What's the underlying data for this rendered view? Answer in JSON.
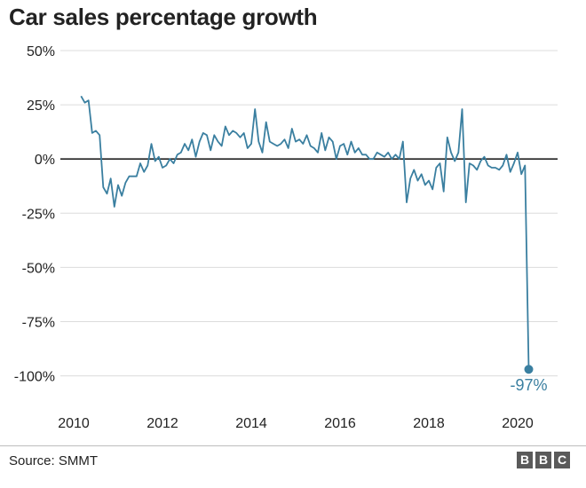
{
  "chart_data": {
    "type": "line",
    "title": "Car sales percentage growth",
    "source": "Source: SMMT",
    "xlabel": "",
    "ylabel": "",
    "xlim": [
      2009.7,
      2020.9
    ],
    "ylim": [
      -110,
      50
    ],
    "y_ticks": [
      {
        "value": 50,
        "label": "50%"
      },
      {
        "value": 25,
        "label": "25%"
      },
      {
        "value": 0,
        "label": "0%"
      },
      {
        "value": -25,
        "label": "-25%"
      },
      {
        "value": -50,
        "label": "-50%"
      },
      {
        "value": -75,
        "label": "-75%"
      },
      {
        "value": -100,
        "label": "-100%"
      }
    ],
    "x_ticks": [
      {
        "value": 2010,
        "label": "2010"
      },
      {
        "value": 2012,
        "label": "2012"
      },
      {
        "value": 2014,
        "label": "2014"
      },
      {
        "value": 2016,
        "label": "2016"
      },
      {
        "value": 2018,
        "label": "2018"
      },
      {
        "value": 2020,
        "label": "2020"
      }
    ],
    "grid": true,
    "line_color": "#3a7fa0",
    "zero_line_color": "#222222",
    "annotation": {
      "x": 2020.25,
      "y": -97,
      "label": "-97%"
    },
    "series": [
      {
        "name": "Car sales percentage growth",
        "x_start": 2010.167,
        "x_step": 0.08333,
        "values": [
          29,
          26,
          27,
          12,
          13,
          11,
          -13,
          -16,
          -9,
          -22,
          -12,
          -17,
          -11,
          -8,
          -8,
          -8,
          -2,
          -6,
          -3,
          7,
          -1,
          1,
          -4,
          -3,
          0,
          -2,
          2,
          3,
          7,
          4,
          9,
          1,
          8,
          12,
          11,
          4,
          11,
          8,
          6,
          15,
          11,
          13,
          12,
          10,
          12,
          5,
          7,
          23,
          8,
          3,
          17,
          8,
          7,
          6,
          7,
          9,
          5,
          14,
          8,
          9,
          7,
          11,
          6,
          5,
          3,
          12,
          4,
          10,
          8,
          0,
          6,
          7,
          2,
          8,
          3,
          5,
          2,
          2,
          0,
          0,
          3,
          2,
          1,
          3,
          0,
          2,
          0,
          8,
          -20,
          -9,
          -5,
          -10,
          -7,
          -12,
          -10,
          -14,
          -4,
          -2,
          -15,
          10,
          3,
          -1,
          3,
          23,
          -20,
          -2,
          -3,
          -5,
          -1,
          1,
          -3,
          -4,
          -4,
          -5,
          -3,
          2,
          -6,
          -2,
          3,
          -7,
          -3,
          -97
        ]
      }
    ]
  }
}
